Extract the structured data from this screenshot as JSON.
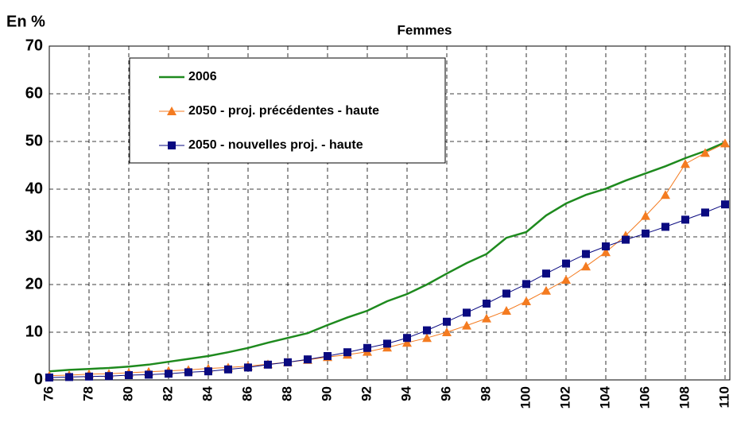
{
  "chart_data": {
    "type": "line",
    "title": "Femmes",
    "y_label": "En %",
    "x": [
      76,
      77,
      78,
      79,
      80,
      81,
      82,
      83,
      84,
      85,
      86,
      87,
      88,
      89,
      90,
      91,
      92,
      93,
      94,
      95,
      96,
      97,
      98,
      99,
      100,
      101,
      102,
      103,
      104,
      105,
      106,
      107,
      108,
      109,
      110
    ],
    "xlim": [
      76,
      110
    ],
    "xticks": [
      76,
      78,
      80,
      82,
      84,
      86,
      88,
      90,
      92,
      94,
      96,
      98,
      100,
      102,
      104,
      106,
      108,
      110
    ],
    "ylim": [
      0,
      70
    ],
    "yticks": [
      0,
      10,
      20,
      30,
      40,
      50,
      60,
      70
    ],
    "grid": true,
    "legend": "upper left",
    "series": [
      {
        "name": "2006",
        "color": "#1e8a1e",
        "marker": "none",
        "values": [
          1.8,
          2.1,
          2.3,
          2.5,
          2.8,
          3.2,
          3.8,
          4.4,
          5.0,
          5.8,
          6.7,
          7.8,
          8.8,
          9.8,
          11.5,
          13.1,
          14.5,
          16.5,
          18.0,
          20.0,
          22.3,
          24.5,
          26.4,
          29.8,
          31.0,
          34.5,
          37.0,
          38.8,
          40.1,
          41.8,
          43.3,
          44.8,
          46.5,
          48.0,
          49.8
        ]
      },
      {
        "name": "2050 - proj. précédentes - haute",
        "color": "#f47b20",
        "marker": "triangle",
        "values": [
          0.9,
          1.0,
          1.2,
          1.3,
          1.5,
          1.7,
          1.9,
          2.1,
          2.4,
          2.6,
          2.9,
          3.3,
          3.7,
          4.2,
          4.8,
          5.3,
          5.9,
          6.8,
          7.8,
          8.8,
          10.0,
          11.4,
          12.9,
          14.5,
          16.5,
          18.7,
          21.0,
          23.8,
          26.8,
          30.3,
          34.4,
          38.8,
          45.3,
          47.6,
          49.6
        ]
      },
      {
        "name": "2050 - nouvelles proj. - haute",
        "color": "#0a0a80",
        "marker": "square",
        "values": [
          0.5,
          0.6,
          0.7,
          0.8,
          1.0,
          1.1,
          1.3,
          1.6,
          1.8,
          2.2,
          2.6,
          3.2,
          3.7,
          4.3,
          5.0,
          5.8,
          6.7,
          7.6,
          8.8,
          10.4,
          12.2,
          14.1,
          16.0,
          18.1,
          20.1,
          22.3,
          24.4,
          26.4,
          28.0,
          29.4,
          30.7,
          32.1,
          33.6,
          35.1,
          36.8
        ]
      }
    ]
  }
}
